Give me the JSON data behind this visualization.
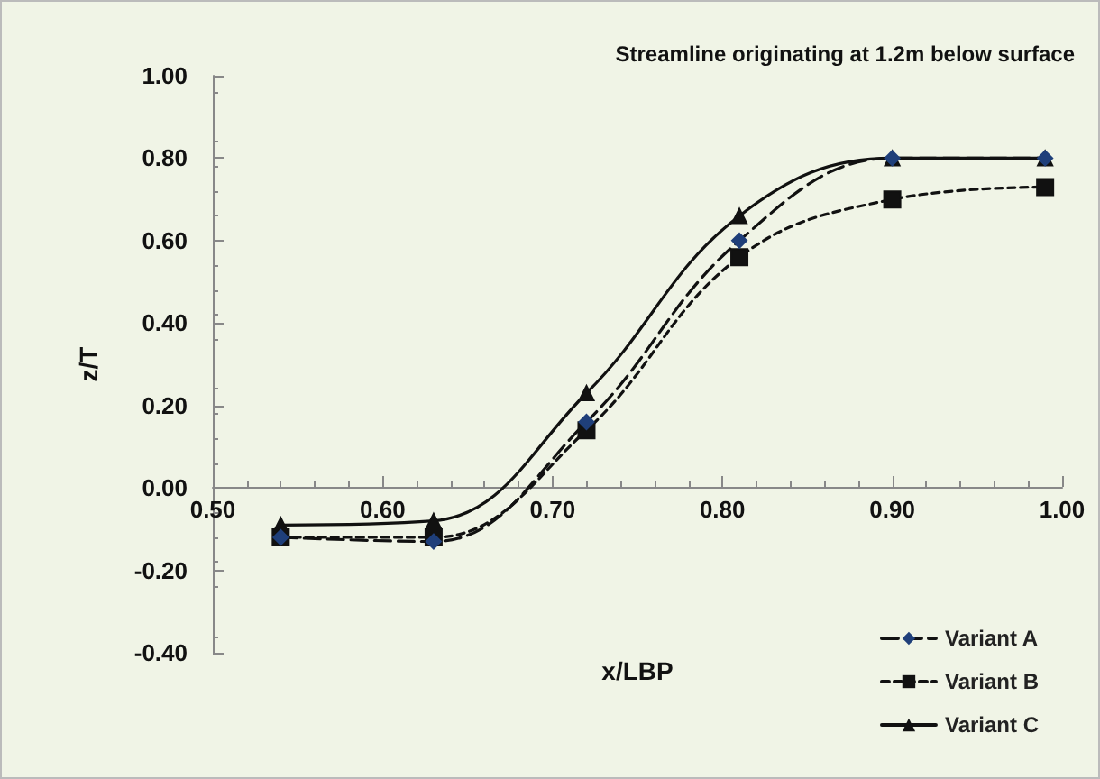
{
  "chart_data": {
    "type": "line",
    "title": "Streamline originating at 1.2m below surface",
    "xlabel": "x/LBP",
    "ylabel": "z/T",
    "x": [
      0.54,
      0.63,
      0.72,
      0.81,
      0.9,
      0.99
    ],
    "series": [
      {
        "name": "Variant A",
        "color": "#1f3f7a",
        "marker": "diamond",
        "line_style": "dashed",
        "values": [
          -0.12,
          -0.13,
          0.16,
          0.6,
          0.8,
          0.8
        ]
      },
      {
        "name": "Variant B",
        "color": "#111111",
        "marker": "square",
        "line_style": "dotted",
        "values": [
          -0.12,
          -0.12,
          0.14,
          0.56,
          0.7,
          0.73
        ]
      },
      {
        "name": "Variant C",
        "color": "#111111",
        "marker": "triangle",
        "line_style": "solid",
        "values": [
          -0.09,
          -0.08,
          0.23,
          0.66,
          0.8,
          0.8
        ]
      }
    ],
    "xlim": [
      0.5,
      1.0
    ],
    "xticks": [
      {
        "value": 0.5,
        "label": "0.50"
      },
      {
        "value": 0.6,
        "label": "0.60"
      },
      {
        "value": 0.7,
        "label": "0.70"
      },
      {
        "value": 0.8,
        "label": "0.80"
      },
      {
        "value": 0.9,
        "label": "0.90"
      },
      {
        "value": 1.0,
        "label": "1.00"
      }
    ],
    "ylim": [
      -0.4,
      1.0
    ],
    "yticks": [
      {
        "value": -0.4,
        "label": "-0.40"
      },
      {
        "value": -0.2,
        "label": "-0.20"
      },
      {
        "value": 0,
        "label": "0.00"
      },
      {
        "value": 0.2,
        "label": "0.20"
      },
      {
        "value": 0.4,
        "label": "0.40"
      },
      {
        "value": 0.6,
        "label": "0.60"
      },
      {
        "value": 0.8,
        "label": "0.80"
      },
      {
        "value": 1.0,
        "label": "1.00"
      }
    ],
    "grid": false,
    "legend": "bottom right"
  }
}
